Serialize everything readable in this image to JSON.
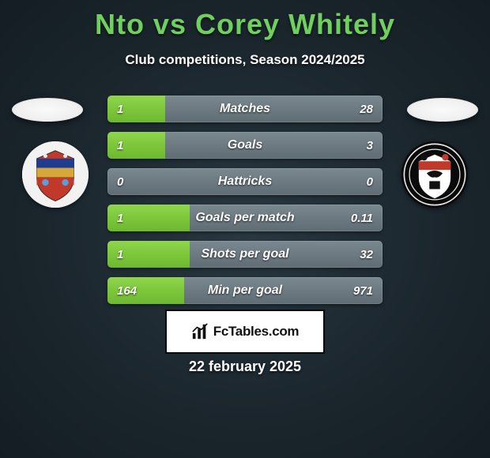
{
  "title": "Nto vs Corey Whitely",
  "subtitle": "Club competitions, Season 2024/2025",
  "date": "22 february 2025",
  "footer": {
    "brand": "FcTables.com"
  },
  "colors": {
    "title_color": "#6fcf5f",
    "green_fill": "#8fd64a",
    "red_fill": "#d14b3e",
    "bar_bg": "#6f7c84",
    "background": "#1e2b33"
  },
  "crest_left": {
    "bg": "#f2f2f2",
    "shield_top": "#1f3d8f",
    "shield_mid": "#d4a93a",
    "shield_low": "#c0392b",
    "shield_bottom": "#5aa0d8"
  },
  "crest_right": {
    "bg": "#0a0a0a",
    "ring": "#e9e9e9",
    "accent_red": "#c0392b",
    "accent_dark": "#111111"
  },
  "bars": [
    {
      "label": "Matches",
      "left_val": "1",
      "right_val": "28",
      "left_pct": 21,
      "right_pct": 0,
      "left_class": "fill-green",
      "right_class": ""
    },
    {
      "label": "Goals",
      "left_val": "1",
      "right_val": "3",
      "left_pct": 21,
      "right_pct": 0,
      "left_class": "fill-green",
      "right_class": ""
    },
    {
      "label": "Hattricks",
      "left_val": "0",
      "right_val": "0",
      "left_pct": 0,
      "right_pct": 0,
      "left_class": "",
      "right_class": ""
    },
    {
      "label": "Goals per match",
      "left_val": "1",
      "right_val": "0.11",
      "left_pct": 30,
      "right_pct": 0,
      "left_class": "fill-green",
      "right_class": ""
    },
    {
      "label": "Shots per goal",
      "left_val": "1",
      "right_val": "32",
      "left_pct": 30,
      "right_pct": 0,
      "left_class": "fill-green",
      "right_class": ""
    },
    {
      "label": "Min per goal",
      "left_val": "164",
      "right_val": "971",
      "left_pct": 28,
      "right_pct": 0,
      "left_class": "fill-green",
      "right_class": ""
    }
  ]
}
